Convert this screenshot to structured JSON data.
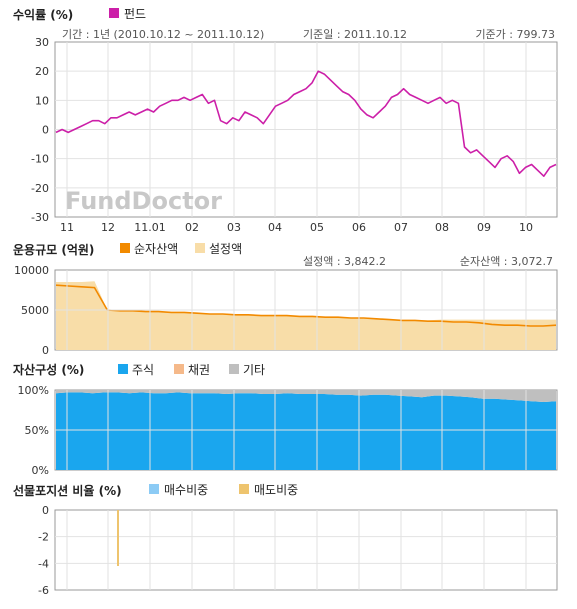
{
  "chart_data": [
    {
      "type": "line",
      "title": "수익률 (%)",
      "legend": [
        "펀드"
      ],
      "info": {
        "period": "기간 : 1년 (2010.10.12 ~ 2011.10.12)",
        "base_date": "기준일 : 2011.10.12",
        "base_price": "기준가 : 799.73"
      },
      "watermark": "FundDoctor",
      "x_ticks": [
        "11",
        "12",
        "11.01",
        "02",
        "03",
        "04",
        "05",
        "06",
        "07",
        "08",
        "09",
        "10"
      ],
      "y_ticks": [
        "30",
        "20",
        "10",
        "0",
        "-10",
        "-20",
        "-30"
      ],
      "ylim": [
        -30,
        30
      ],
      "series": [
        {
          "name": "펀드",
          "color": "#CC1FA8",
          "values": [
            -1,
            0,
            -1,
            0,
            1,
            2,
            3,
            3,
            2,
            4,
            4,
            5,
            6,
            5,
            6,
            7,
            6,
            8,
            9,
            10,
            10,
            11,
            10,
            11,
            12,
            9,
            10,
            3,
            2,
            4,
            3,
            6,
            5,
            4,
            2,
            5,
            8,
            9,
            10,
            12,
            13,
            14,
            16,
            20,
            19,
            17,
            15,
            13,
            12,
            10,
            7,
            5,
            4,
            6,
            8,
            11,
            12,
            14,
            12,
            11,
            10,
            9,
            10,
            11,
            9,
            10,
            9,
            -6,
            -8,
            -7,
            -9,
            -11,
            -13,
            -10,
            -9,
            -11,
            -15,
            -13,
            -12,
            -14,
            -16,
            -13,
            -12
          ]
        }
      ]
    },
    {
      "type": "area",
      "title": "운용규모 (억원)",
      "legend": [
        "순자산액",
        "설정액"
      ],
      "info": {
        "setup_amount": "설정액 : 3,842.2",
        "net_assets": "순자산액 : 3,072.7"
      },
      "y_ticks": [
        "10000",
        "5000",
        "0"
      ],
      "ylim": [
        0,
        10000
      ],
      "series": [
        {
          "name": "순자산액",
          "color": "#F28A00",
          "values": [
            8100,
            8000,
            7900,
            7800,
            5000,
            4900,
            4900,
            4800,
            4800,
            4700,
            4700,
            4600,
            4500,
            4500,
            4400,
            4400,
            4300,
            4300,
            4300,
            4200,
            4200,
            4100,
            4100,
            4000,
            4000,
            3900,
            3800,
            3700,
            3700,
            3600,
            3600,
            3500,
            3500,
            3400,
            3200,
            3100,
            3100,
            3000,
            3000,
            3100
          ]
        },
        {
          "name": "설정액",
          "color": "#F8DDA8",
          "values": [
            8500,
            8500,
            8500,
            8600,
            5000,
            4900,
            4900,
            4800,
            4800,
            4700,
            4700,
            4600,
            4500,
            4500,
            4400,
            4400,
            4300,
            4300,
            4300,
            4200,
            4200,
            4100,
            4100,
            4000,
            4000,
            3900,
            3800,
            3700,
            3700,
            3700,
            3800,
            3800,
            3800,
            3800,
            3800,
            3800,
            3800,
            3800,
            3800,
            3800
          ]
        }
      ]
    },
    {
      "type": "area",
      "title": "자산구성 (%)",
      "legend": [
        "주식",
        "채권",
        "기타"
      ],
      "y_ticks": [
        "100%",
        "50%",
        "0%"
      ],
      "ylim": [
        0,
        100
      ],
      "series": [
        {
          "name": "주식",
          "color": "#1AA6EE",
          "values": [
            96,
            97,
            97,
            96,
            97,
            97,
            96,
            97,
            96,
            96,
            97,
            96,
            96,
            96,
            95,
            96,
            96,
            95,
            95,
            96,
            95,
            95,
            95,
            94,
            94,
            93,
            94,
            94,
            93,
            92,
            91,
            93,
            93,
            92,
            91,
            89,
            89,
            88,
            87,
            86,
            85,
            86
          ]
        },
        {
          "name": "채권",
          "color": "#F5B98A",
          "values": [
            0,
            0,
            0,
            0,
            0,
            0,
            0,
            0,
            0,
            0,
            0,
            0,
            0,
            0,
            0,
            0,
            0,
            0,
            0,
            0,
            0,
            0,
            0,
            0,
            0,
            0,
            0,
            0,
            0,
            0,
            0,
            0,
            0,
            0,
            0,
            0,
            0,
            0,
            0,
            0,
            0,
            0
          ]
        },
        {
          "name": "기타",
          "color": "#BFBFBF",
          "values": [
            4,
            3,
            3,
            4,
            3,
            3,
            4,
            3,
            4,
            4,
            3,
            4,
            4,
            4,
            5,
            4,
            4,
            5,
            5,
            4,
            5,
            5,
            5,
            6,
            6,
            7,
            6,
            6,
            7,
            8,
            9,
            7,
            7,
            8,
            9,
            11,
            11,
            12,
            13,
            14,
            15,
            14
          ]
        }
      ]
    },
    {
      "type": "bar",
      "title": "선물포지션 비율 (%)",
      "legend": [
        "매수비중",
        "매도비중"
      ],
      "y_ticks": [
        "0",
        "-2",
        "-4",
        "-6"
      ],
      "ylim": [
        -6,
        0
      ],
      "series": [
        {
          "name": "매수비중",
          "color": "#8CCBF5",
          "values": []
        },
        {
          "name": "매도비중",
          "color": "#EEC46E",
          "values": [
            -4.2
          ]
        }
      ]
    }
  ]
}
